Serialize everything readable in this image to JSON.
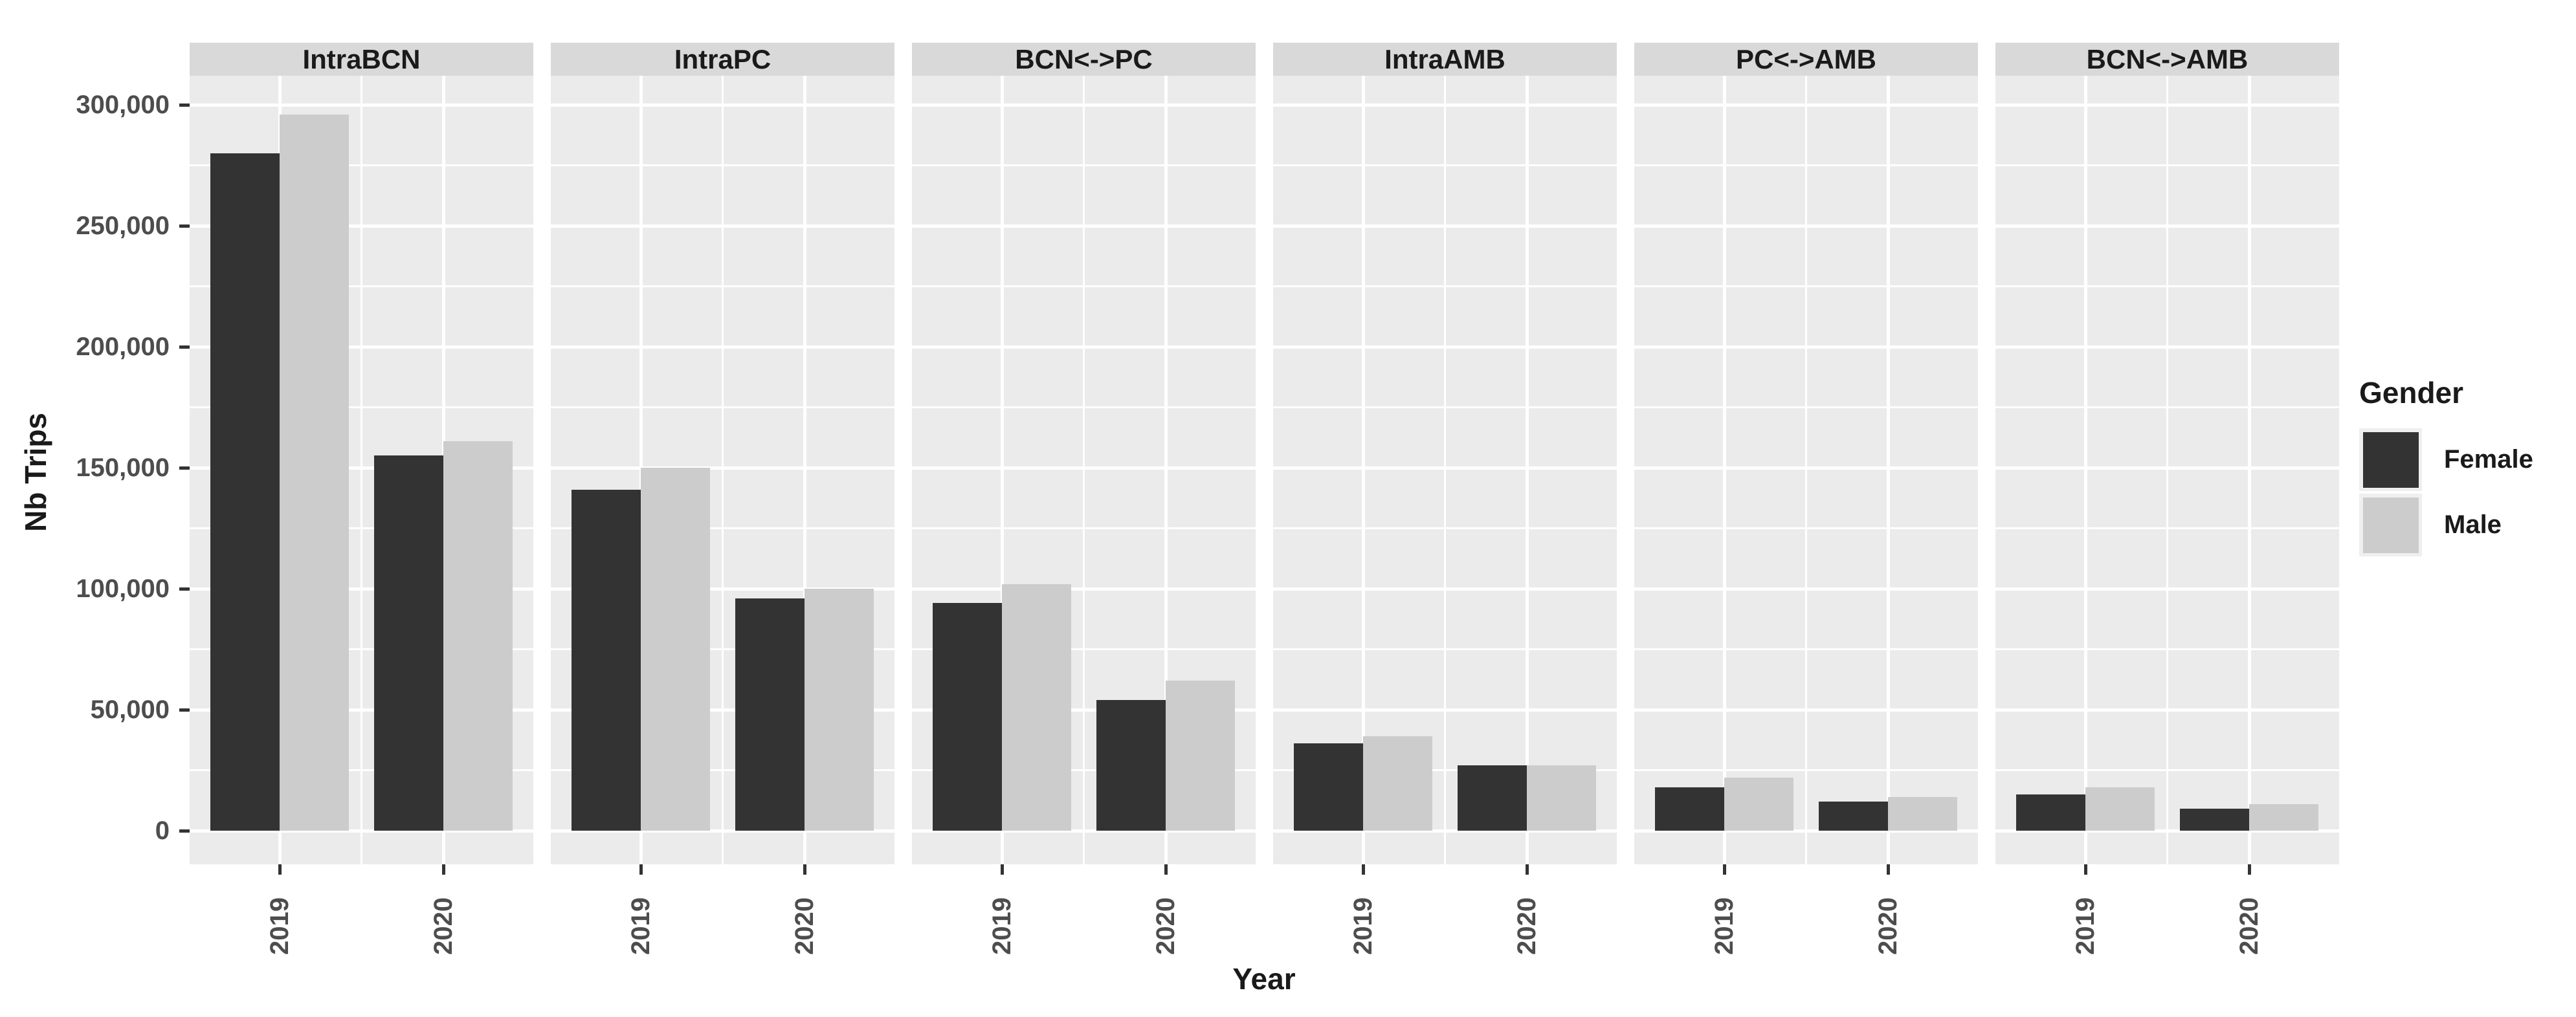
{
  "axes": {
    "y_title": "Nb Trips",
    "x_title": "Year",
    "y_ticks": [
      {
        "label": "0",
        "value": 0
      },
      {
        "label": "50,000",
        "value": 50000
      },
      {
        "label": "100,000",
        "value": 100000
      },
      {
        "label": "150,000",
        "value": 150000
      },
      {
        "label": "200,000",
        "value": 200000
      },
      {
        "label": "250,000",
        "value": 250000
      },
      {
        "label": "300,000",
        "value": 300000
      }
    ],
    "x_ticks": [
      "2019",
      "2020"
    ]
  },
  "legend": {
    "title": "Gender",
    "items": [
      {
        "label": "Female",
        "color": "#333333"
      },
      {
        "label": "Male",
        "color": "#cccccc"
      }
    ]
  },
  "colors": {
    "panel_bg": "#ebebeb",
    "strip_bg": "#d9d9d9",
    "grid": "#ffffff",
    "legend_key_bg": "#efefef"
  },
  "chart_data": {
    "type": "bar",
    "faceted": true,
    "title": "",
    "xlabel": "Year",
    "ylabel": "Nb Trips",
    "ylim": [
      0,
      312000
    ],
    "y_major_step": 50000,
    "grid": "white major+minor gridlines on grey panel",
    "legend_position": "right",
    "categories": [
      "2019",
      "2020"
    ],
    "series": [
      {
        "name": "Female",
        "color": "#333333"
      },
      {
        "name": "Male",
        "color": "#cccccc"
      }
    ],
    "facets": [
      {
        "label": "IntraBCN",
        "values": {
          "Female": [
            280000,
            155000
          ],
          "Male": [
            296000,
            161000
          ]
        }
      },
      {
        "label": "IntraPC",
        "values": {
          "Female": [
            141000,
            96000
          ],
          "Male": [
            150000,
            100000
          ]
        }
      },
      {
        "label": "BCN<->PC",
        "values": {
          "Female": [
            94000,
            54000
          ],
          "Male": [
            102000,
            62000
          ]
        }
      },
      {
        "label": "IntraAMB",
        "values": {
          "Female": [
            36000,
            27000
          ],
          "Male": [
            39000,
            27000
          ]
        }
      },
      {
        "label": "PC<->AMB",
        "values": {
          "Female": [
            18000,
            12000
          ],
          "Male": [
            22000,
            14000
          ]
        }
      },
      {
        "label": "BCN<->AMB",
        "values": {
          "Female": [
            15000,
            9000
          ],
          "Male": [
            18000,
            11000
          ]
        }
      }
    ]
  }
}
